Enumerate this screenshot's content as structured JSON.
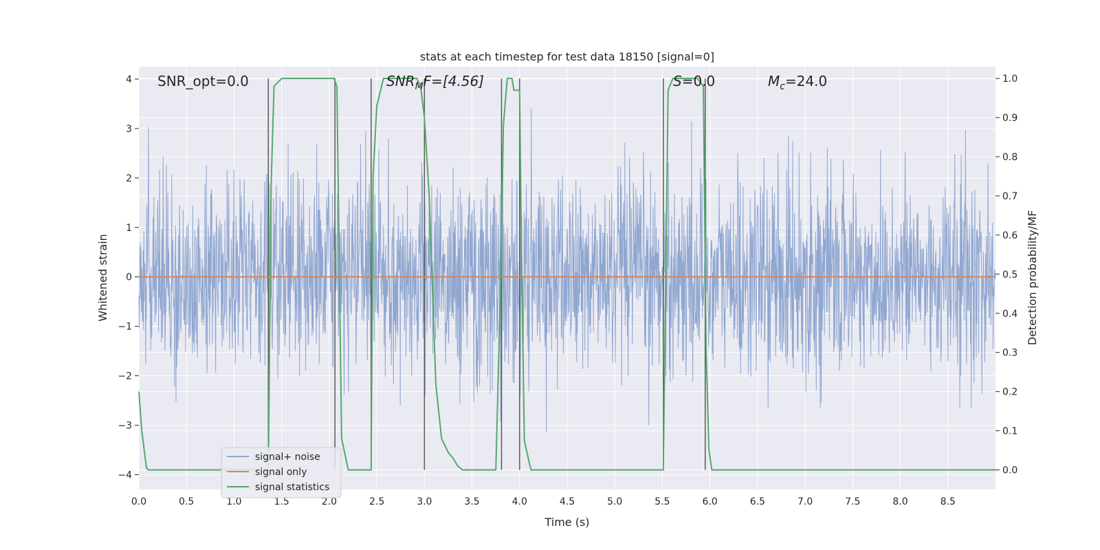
{
  "chart_data": {
    "type": "line",
    "title": "stats at each timestep for test data 18150 [signal=0]",
    "xlabel": "Time (s)",
    "ylabel": "Whitened strain",
    "ylabel_right": "Detection probability/MF",
    "xlim": [
      0.0,
      9.0
    ],
    "ylim": [
      -4.3,
      4.25
    ],
    "ylim_right": [
      -0.05,
      1.03
    ],
    "x_ticks": [
      "0.0",
      "0.5",
      "1.0",
      "1.5",
      "2.0",
      "2.5",
      "3.0",
      "3.5",
      "4.0",
      "4.5",
      "5.0",
      "5.5",
      "6.0",
      "6.5",
      "7.0",
      "7.5",
      "8.0",
      "8.5"
    ],
    "y_ticks": [
      "4",
      "3",
      "2",
      "1",
      "0",
      "−1",
      "−2",
      "−3",
      "−4"
    ],
    "y_right_ticks": [
      "1.0",
      "0.9",
      "0.8",
      "0.7",
      "0.6",
      "0.5",
      "0.4",
      "0.3",
      "0.2",
      "0.1",
      "0.0"
    ],
    "grid": true,
    "legend_placement": "lower-left",
    "annotations": {
      "snr_opt": "SNR_opt=0.0",
      "snr_mf_main": "SNR",
      "snr_mf_sub": "M",
      "snr_mf_rest": "F=[4.56]",
      "s_italic": "S",
      "s_rest": "=0.0",
      "mc_main": "M",
      "mc_sub": "c",
      "mc_rest": "=24.0"
    },
    "series": [
      {
        "name": "signal+ noise",
        "color": "#8fa6d0",
        "description_values": "whitened noise, typical range about -2 to 2, peaks to about -4 and +3.6"
      },
      {
        "name": "signal only",
        "color": "#dd8452",
        "x": [
          0.0,
          9.0
        ],
        "y": [
          0.0,
          0.0
        ]
      },
      {
        "name": "signal statistics",
        "color": "#55a868",
        "axis": "right",
        "x": [
          0.0,
          0.03,
          0.08,
          0.1,
          0.8,
          1.36,
          1.39,
          1.42,
          1.5,
          2.05,
          2.08,
          2.13,
          2.2,
          2.44,
          2.46,
          2.5,
          2.57,
          2.92,
          2.96,
          3.0,
          3.05,
          3.12,
          3.18,
          3.25,
          3.3,
          3.35,
          3.4,
          3.45,
          3.6,
          3.75,
          3.8,
          3.83,
          3.87,
          3.92,
          3.94,
          4.0,
          4.02,
          4.05,
          4.1,
          4.12,
          5.51,
          5.56,
          5.61,
          5.7,
          5.87,
          5.93,
          5.96,
          5.99,
          6.02,
          9.0
        ],
        "y": [
          0.2,
          0.1,
          0.005,
          0.0,
          0.0,
          0.0,
          0.73,
          0.98,
          1.0,
          1.0,
          0.98,
          0.08,
          0.0,
          0.0,
          0.75,
          0.93,
          1.0,
          1.0,
          0.98,
          0.9,
          0.7,
          0.22,
          0.08,
          0.045,
          0.03,
          0.01,
          0.0,
          0.0,
          0.0,
          0.0,
          0.47,
          0.88,
          1.0,
          1.0,
          0.97,
          0.97,
          0.55,
          0.075,
          0.02,
          0.0,
          0.0,
          0.97,
          1.0,
          1.0,
          1.0,
          0.98,
          0.3,
          0.05,
          0.0,
          0.0
        ]
      }
    ],
    "vertical_lines_x": [
      1.36,
      2.06,
      2.44,
      3.0,
      3.81,
      4.0,
      5.51,
      5.95
    ],
    "legend": [
      "signal+ noise",
      "signal only",
      "signal statistics"
    ]
  },
  "colors": {
    "plot_bg": "#eaeaf2",
    "grid": "#ffffff",
    "noise": "#8fa6d0",
    "signal_only": "#dd8452",
    "statistics": "#55a868",
    "vlines": "#595959"
  }
}
